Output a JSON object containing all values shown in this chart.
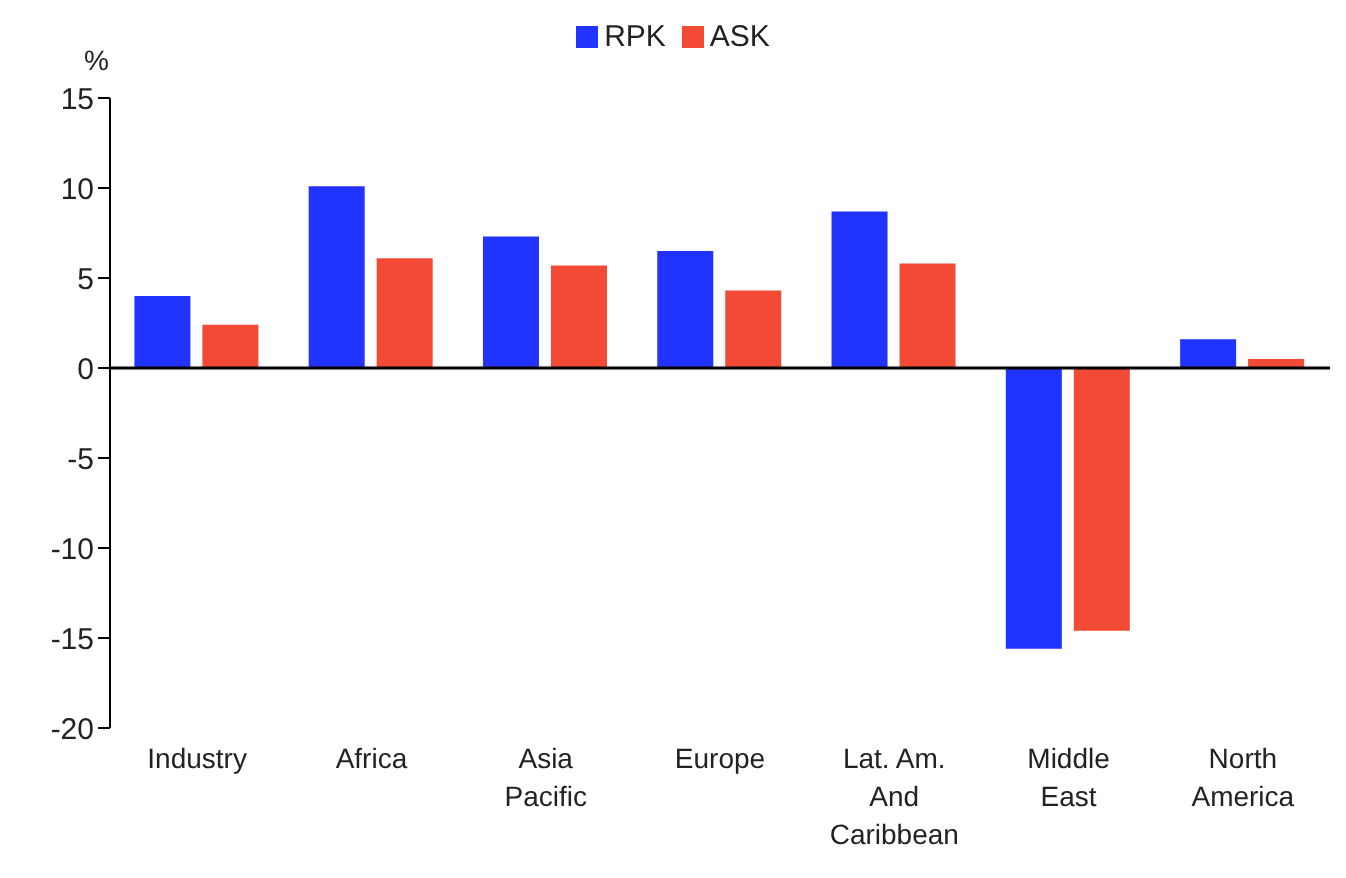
{
  "chart_data": {
    "type": "bar",
    "ylabel": "%",
    "categories": [
      "Industry",
      "Africa",
      "Asia Pacific",
      "Europe",
      "Lat. Am. And Caribbean",
      "Middle East",
      "North America"
    ],
    "series": [
      {
        "name": "RPK",
        "color": "#2033ff",
        "values": [
          4.0,
          10.1,
          7.3,
          6.5,
          8.7,
          -15.6,
          1.6
        ]
      },
      {
        "name": "ASK",
        "color": "#f24a34",
        "values": [
          2.4,
          6.1,
          5.7,
          4.3,
          5.8,
          -14.6,
          0.5
        ]
      }
    ],
    "ylim": [
      -20,
      15
    ],
    "yticks": [
      -20,
      -15,
      -10,
      -5,
      0,
      5,
      10,
      15
    ],
    "legend": "top"
  }
}
